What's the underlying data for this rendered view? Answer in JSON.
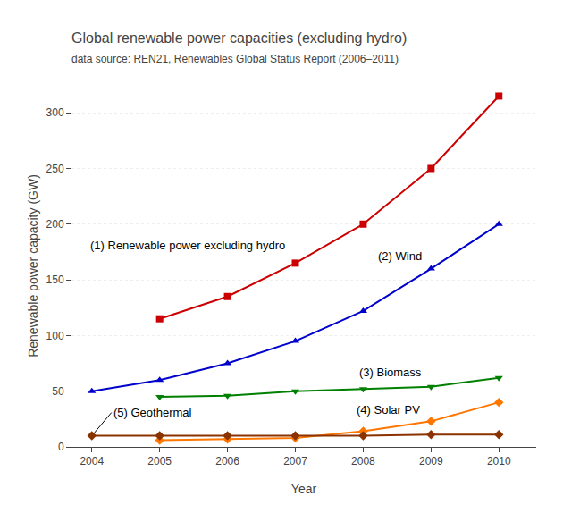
{
  "chart_data": {
    "type": "line",
    "title": "Global renewable power capacities (excluding hydro)",
    "subtitle": "data source: REN21, Renewables Global Status Report (2006–2011)",
    "xlabel": "Year",
    "ylabel": "Renewable power capacity (GW)",
    "x": [
      2004,
      2005,
      2006,
      2007,
      2008,
      2009,
      2010
    ],
    "series": [
      {
        "name": "(1) Renewable power excluding hydro",
        "color": "#cc0000",
        "marker": "square",
        "values": [
          null,
          115,
          135,
          165,
          200,
          250,
          315
        ]
      },
      {
        "name": "(2) Wind",
        "color": "#0000cc",
        "marker": "triangle-up",
        "values": [
          50,
          60,
          75,
          95,
          122,
          160,
          200
        ]
      },
      {
        "name": "(3) Biomass",
        "color": "#008000",
        "marker": "triangle-down",
        "values": [
          null,
          45,
          46,
          50,
          52,
          54,
          62
        ]
      },
      {
        "name": "(4) Solar PV",
        "color": "#ff7700",
        "marker": "diamond",
        "values": [
          null,
          6,
          7,
          8,
          14,
          23,
          40
        ]
      },
      {
        "name": "(5) Geothermal",
        "color": "#8B3300",
        "marker": "diamond",
        "values": [
          10,
          10,
          10,
          10,
          10,
          11,
          11
        ]
      }
    ],
    "xlim": [
      2003.7,
      2010.55
    ],
    "xticks": [
      2004,
      2005,
      2006,
      2007,
      2008,
      2009,
      2010
    ],
    "ylim": [
      0,
      325
    ],
    "yticks": [
      0,
      50,
      100,
      150,
      200,
      250,
      300
    ],
    "grid": true
  }
}
